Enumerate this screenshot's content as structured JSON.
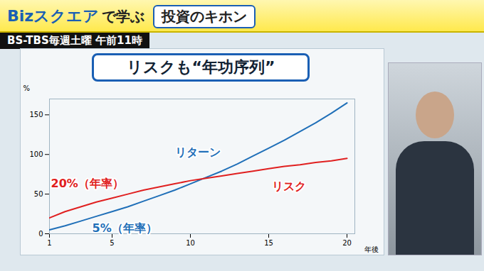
{
  "header": {
    "brand": "Bizスクエア",
    "brand_suffix": "で学ぶ",
    "series": "投資のキホン",
    "channel": "BS-TBS毎週土曜 午前11時"
  },
  "chart_data": {
    "type": "line",
    "title": "リスクも“年功序列”",
    "x": [
      1,
      2,
      3,
      4,
      5,
      6,
      7,
      8,
      9,
      10,
      11,
      12,
      13,
      14,
      15,
      16,
      17,
      18,
      19,
      20
    ],
    "series": [
      {
        "name": "リターン",
        "color": "#1f6fb8",
        "values": [
          5,
          10,
          16,
          22,
          28,
          34,
          41,
          48,
          55,
          63,
          71,
          79,
          88,
          98,
          108,
          118,
          129,
          140,
          152,
          165
        ]
      },
      {
        "name": "リスク",
        "color": "#e02020",
        "values": [
          20,
          28,
          34,
          40,
          45,
          50,
          55,
          59,
          63,
          67,
          70,
          73,
          76,
          79,
          82,
          85,
          87,
          90,
          92,
          95
        ]
      }
    ],
    "annotations": [
      {
        "text": "20%（年率）",
        "series": "リスク"
      },
      {
        "text": "5%（年率）",
        "series": "リターン"
      }
    ],
    "xlabel": "年後",
    "ylabel": "%",
    "xlim": [
      1,
      20.5
    ],
    "ylim": [
      0,
      170
    ],
    "xticks": [
      1,
      5,
      10,
      15,
      20
    ],
    "yticks": [
      0,
      50,
      100,
      150
    ],
    "grid": false
  }
}
